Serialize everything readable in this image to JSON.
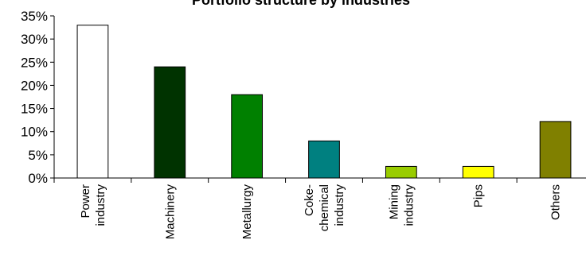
{
  "chart_data": {
    "type": "bar",
    "title": "Portfolio structure by industries",
    "xlabel": "",
    "ylabel": "",
    "ylim": [
      0,
      35
    ],
    "y_ticks": [
      "0%",
      "5%",
      "10%",
      "15%",
      "20%",
      "25%",
      "30%",
      "35%"
    ],
    "grid": false,
    "legend": "none",
    "categories": [
      [
        "Power",
        "industry"
      ],
      [
        "Machinery"
      ],
      [
        "Metallurgy"
      ],
      [
        "Coke-",
        "chemical",
        "industry"
      ],
      [
        "Mining",
        "industry"
      ],
      [
        "Pips"
      ],
      [
        "Others"
      ]
    ],
    "values": [
      33,
      24,
      18,
      8,
      2.5,
      2.5,
      12.2
    ],
    "colors": [
      "#ffffff",
      "#003300",
      "#008000",
      "#008080",
      "#99cc00",
      "#ffff00",
      "#808000"
    ]
  }
}
